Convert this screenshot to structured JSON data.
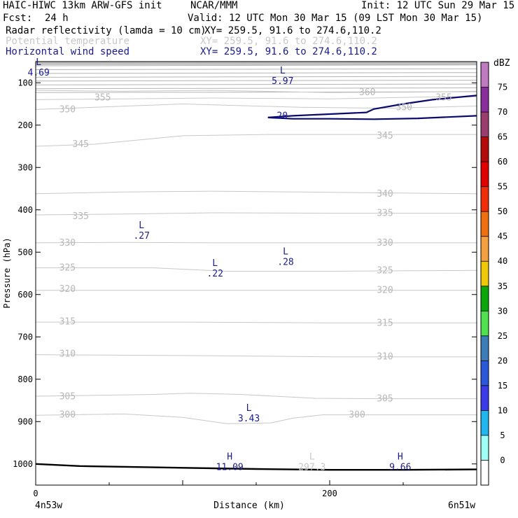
{
  "header": {
    "model": "HAIC-HIWC 13km ARW-GFS init",
    "org": "NCAR/MMM",
    "init": "Init: 12 UTC Sun 29 Mar 15",
    "fcst_label": "Fcst:",
    "fcst_value": "24 h",
    "valid": "Valid: 12 UTC Mon 30 Mar 15 (09 LST Mon 30 Mar 15)",
    "fields": [
      {
        "name": "Radar reflectivity (lamda = 10 cm)",
        "xy": "XY= 259.5, 91.6 to 274.6,110.2",
        "color": "#000000"
      },
      {
        "name": "Potential temperature",
        "xy": "XY= 259.5, 91.6 to 274.6,110.2",
        "color": "#c8c8c8"
      },
      {
        "name": "Horizontal wind speed",
        "xy": "XY= 259.5, 91.6 to 274.6,110.2",
        "color": "#1a1a8c"
      }
    ]
  },
  "chart_data": {
    "type": "cross-section",
    "xlabel": "Distance (km)",
    "ylabel": "Pressure (hPa)",
    "xlim": [
      0,
      300
    ],
    "ylim": [
      1050,
      50
    ],
    "x_ticks": [
      0,
      200
    ],
    "y_ticks": [
      100,
      200,
      300,
      400,
      500,
      600,
      700,
      800,
      900,
      1000
    ],
    "endpoint_left": "4n53w",
    "endpoint_right": "6n51w",
    "colorbar": {
      "unit": "dBZ",
      "levels": [
        0,
        5,
        10,
        15,
        20,
        25,
        30,
        35,
        40,
        45,
        50,
        55,
        60,
        65,
        70,
        75
      ],
      "colors": [
        "#ffffff",
        "#9ffff7",
        "#22b6f0",
        "#3b3be8",
        "#2b58d8",
        "#3c7cb8",
        "#50e050",
        "#0aa60a",
        "#f0c80a",
        "#f5a040",
        "#f07010",
        "#f02e0a",
        "#e00000",
        "#b40a0a",
        "#9a3c6e",
        "#8a2e9e",
        "#c07ac0"
      ]
    },
    "theta_contours": [
      {
        "value": 355,
        "labels": [
          {
            "text": "355",
            "x": 40,
            "p": 135
          },
          {
            "text": "355",
            "x": 272,
            "p": 135
          }
        ]
      },
      {
        "value": 350,
        "labels": [
          {
            "text": "350",
            "x": 16,
            "p": 163
          },
          {
            "text": "350",
            "x": 245,
            "p": 158
          }
        ]
      },
      {
        "value": 360,
        "labels": [
          {
            "text": "360",
            "x": 220,
            "p": 123
          }
        ]
      },
      {
        "value": 345,
        "labels": [
          {
            "text": "345",
            "x": 25,
            "p": 245
          },
          {
            "text": "345",
            "x": 232,
            "p": 225
          }
        ]
      },
      {
        "value": 340,
        "labels": [
          {
            "text": "340",
            "x": 232,
            "p": 362
          }
        ]
      },
      {
        "value": 335,
        "labels": [
          {
            "text": "335",
            "x": 25,
            "p": 415
          },
          {
            "text": "335",
            "x": 232,
            "p": 408
          }
        ]
      },
      {
        "value": 330,
        "labels": [
          {
            "text": "330",
            "x": 16,
            "p": 478
          },
          {
            "text": "330",
            "x": 232,
            "p": 478
          }
        ]
      },
      {
        "value": 325,
        "labels": [
          {
            "text": "325",
            "x": 16,
            "p": 537
          },
          {
            "text": "325",
            "x": 232,
            "p": 543
          }
        ]
      },
      {
        "value": 320,
        "labels": [
          {
            "text": "320",
            "x": 16,
            "p": 587
          },
          {
            "text": "320",
            "x": 232,
            "p": 590
          }
        ]
      },
      {
        "value": 315,
        "labels": [
          {
            "text": "315",
            "x": 16,
            "p": 664
          },
          {
            "text": "315",
            "x": 232,
            "p": 667
          }
        ]
      },
      {
        "value": 310,
        "labels": [
          {
            "text": "310",
            "x": 16,
            "p": 740
          },
          {
            "text": "310",
            "x": 232,
            "p": 747
          }
        ]
      },
      {
        "value": 305,
        "labels": [
          {
            "text": "305",
            "x": 16,
            "p": 841
          },
          {
            "text": "305",
            "x": 232,
            "p": 846
          }
        ]
      },
      {
        "value": 300,
        "labels": [
          {
            "text": "300",
            "x": 16,
            "p": 884
          },
          {
            "text": "300",
            "x": 213,
            "p": 884
          }
        ]
      }
    ],
    "wind_contours": [
      {
        "value": 20,
        "label": "20"
      }
    ],
    "extrema": [
      {
        "type": "L",
        "value": "4.69",
        "x": 2,
        "p": 58,
        "color": "#1a1a8c"
      },
      {
        "type": "L",
        "value": "5.97",
        "x": 168,
        "p": 78,
        "color": "#1a1a8c"
      },
      {
        "type": "L",
        "value": ".27",
        "x": 72,
        "p": 443,
        "color": "#1a1a8c"
      },
      {
        "type": "L",
        "value": ".22",
        "x": 122,
        "p": 533,
        "color": "#1a1a8c"
      },
      {
        "type": "L",
        "value": ".28",
        "x": 170,
        "p": 505,
        "color": "#1a1a8c"
      },
      {
        "type": "L",
        "value": "3.43",
        "x": 145,
        "p": 875,
        "color": "#1a1a8c"
      },
      {
        "type": "H",
        "value": "11.09",
        "x": 132,
        "p": 990,
        "color": "#1a1a8c"
      },
      {
        "type": "L",
        "value": "297.3",
        "x": 188,
        "p": 990,
        "color": "#c8c8c8"
      },
      {
        "type": "H",
        "value": "9.66",
        "x": 248,
        "p": 990,
        "color": "#1a1a8c"
      }
    ]
  }
}
